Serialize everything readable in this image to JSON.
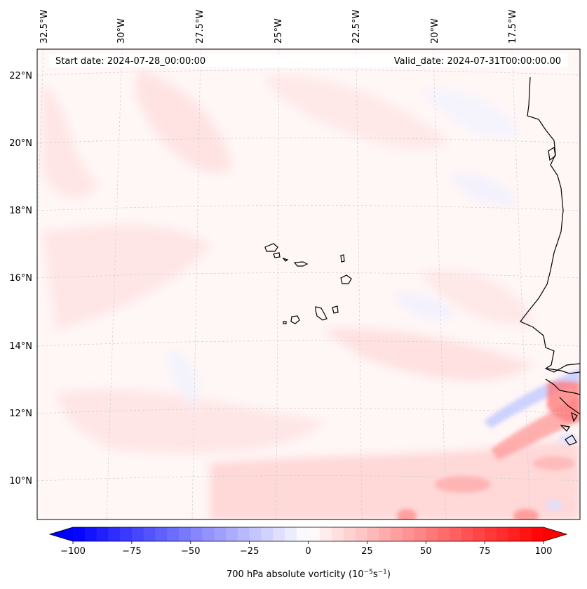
{
  "header": {
    "start_date": "Start date: 2024-07-28_00:00:00",
    "valid_date": "Valid_date: 2024-07-31T00:00:00.00"
  },
  "lon_labels": [
    "32.5°W",
    "30°W",
    "27.5°W",
    "25°W",
    "22.5°W",
    "20°W",
    "17.5°W"
  ],
  "lat_labels": [
    "22°N",
    "20°N",
    "18°N",
    "16°N",
    "14°N",
    "12°N",
    "10°N"
  ],
  "colorbar": {
    "ticks": [
      "−100",
      "−75",
      "−50",
      "−25",
      "0",
      "25",
      "50",
      "75",
      "100"
    ],
    "range": [
      -100,
      100
    ],
    "label_prefix": "700 hPa absolute vorticity (10",
    "label_exp1": "−5",
    "label_mid": "s",
    "label_exp2": "−1",
    "label_suffix": ")",
    "colors": {
      "min": "#0000ff",
      "mid": "#ffffff",
      "max": "#ff0000"
    }
  },
  "map": {
    "background": "#fff7f7",
    "coastline_color": "#000000",
    "gridline_color": "#c8c8c8"
  }
}
